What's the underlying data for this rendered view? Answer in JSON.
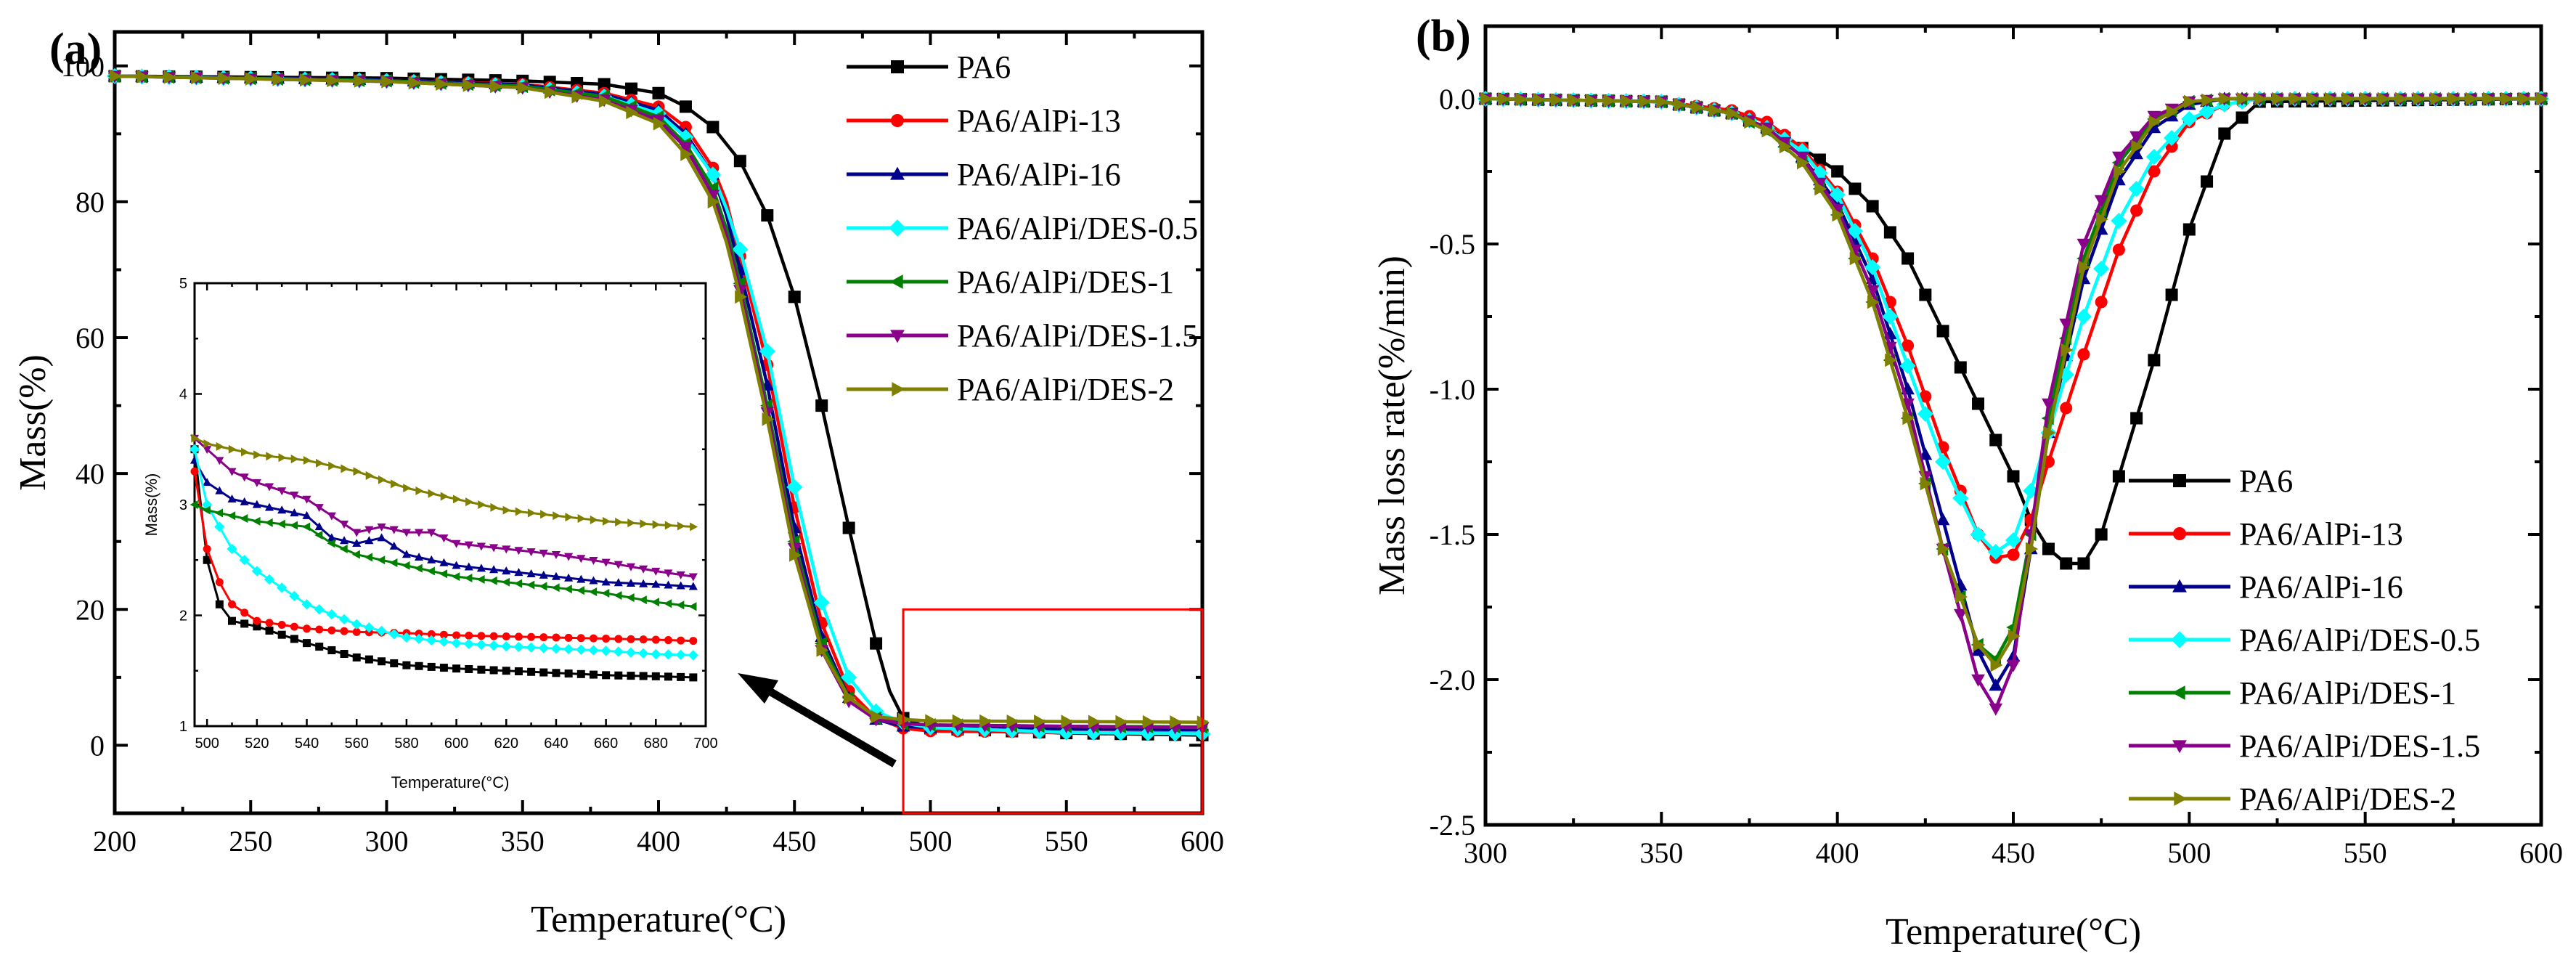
{
  "figure": {
    "series_names": [
      "PA6",
      "PA6/AlPi-13",
      "PA6/AlPi-16",
      "PA6/AlPi/DES-0.5",
      "PA6/AlPi/DES-1",
      "PA6/AlPi/DES-1.5",
      "PA6/AlPi/DES-2"
    ],
    "series_colors": [
      "#000000",
      "#ff0000",
      "#00008b",
      "#00ffff",
      "#008000",
      "#8b008b",
      "#808000"
    ],
    "series_markers": [
      "square",
      "circle",
      "triangle-up",
      "diamond",
      "triangle-left",
      "triangle-down",
      "triangle-right"
    ]
  },
  "chart_data": [
    {
      "panel_label": "(a)",
      "type": "line",
      "title": "",
      "xlabel": "Temperature(°C)",
      "ylabel": "Mass(%)",
      "xlim": [
        200,
        600
      ],
      "ylim": [
        -10,
        105
      ],
      "xticks": [
        200,
        250,
        300,
        350,
        400,
        450,
        500,
        550,
        600
      ],
      "yticks": [
        0,
        20,
        40,
        60,
        80,
        100
      ],
      "legend": "top-right",
      "zoom_box": {
        "x": [
          490,
          600
        ],
        "y": [
          -10,
          20
        ]
      },
      "series": [
        {
          "name": "PA6",
          "x": [
            200,
            300,
            350,
            380,
            400,
            410,
            420,
            430,
            440,
            450,
            460,
            470,
            480,
            485,
            490,
            500,
            550,
            600
          ],
          "y": [
            98.5,
            98.2,
            97.8,
            97.3,
            96,
            94,
            91,
            86,
            78,
            66,
            50,
            32,
            15,
            8,
            4,
            2.5,
            1.8,
            1.5
          ]
        },
        {
          "name": "PA6/AlPi-13",
          "x": [
            200,
            300,
            350,
            380,
            400,
            410,
            420,
            425,
            430,
            440,
            450,
            460,
            470,
            480,
            490,
            500,
            550,
            600
          ],
          "y": [
            98.5,
            97.9,
            97.3,
            96,
            94,
            91,
            85,
            80,
            72,
            56,
            35,
            18,
            8,
            4,
            2.5,
            2.1,
            1.9,
            1.8
          ]
        },
        {
          "name": "PA6/AlPi-16",
          "x": [
            200,
            300,
            350,
            380,
            400,
            410,
            420,
            425,
            430,
            440,
            450,
            460,
            470,
            480,
            490,
            500,
            550,
            600
          ],
          "y": [
            98.5,
            97.9,
            97.2,
            95.8,
            93.5,
            90,
            84,
            78,
            70,
            53,
            32,
            16,
            7,
            3.8,
            2.8,
            2.6,
            2.4,
            2.3
          ]
        },
        {
          "name": "PA6/AlPi/DES-0.5",
          "x": [
            200,
            300,
            350,
            380,
            400,
            410,
            420,
            425,
            430,
            440,
            450,
            460,
            470,
            480,
            490,
            500,
            550,
            600
          ],
          "y": [
            98.5,
            97.8,
            97,
            95.5,
            93,
            89.5,
            84,
            79,
            73,
            58,
            38,
            21,
            10,
            5,
            3.3,
            2.6,
            1.9,
            1.7
          ]
        },
        {
          "name": "PA6/AlPi/DES-1",
          "x": [
            200,
            300,
            350,
            380,
            400,
            410,
            420,
            425,
            430,
            440,
            450,
            460,
            470,
            480,
            490,
            500,
            550,
            600
          ],
          "y": [
            98.5,
            97.8,
            97,
            95.5,
            92.5,
            88.5,
            82,
            76,
            68,
            50,
            30,
            15,
            7,
            4,
            3.2,
            3,
            2.8,
            2.7
          ]
        },
        {
          "name": "PA6/AlPi/DES-1.5",
          "x": [
            200,
            300,
            350,
            380,
            400,
            410,
            420,
            425,
            430,
            440,
            450,
            460,
            470,
            480,
            490,
            500,
            550,
            600
          ],
          "y": [
            98.5,
            97.7,
            96.8,
            95,
            92,
            88,
            81,
            75,
            67,
            49,
            29,
            14,
            6.5,
            3.8,
            3.2,
            3,
            2.8,
            2.6
          ]
        },
        {
          "name": "PA6/AlPi/DES-2",
          "x": [
            200,
            300,
            350,
            380,
            400,
            410,
            420,
            425,
            430,
            440,
            450,
            460,
            470,
            480,
            490,
            500,
            550,
            600
          ],
          "y": [
            98.5,
            97.7,
            96.8,
            94.8,
            91.5,
            87,
            80,
            74,
            66,
            48,
            28,
            14,
            7,
            4.2,
            3.8,
            3.6,
            3.5,
            3.4
          ]
        }
      ],
      "inset": {
        "type": "line",
        "xlabel": "Temperature(°C)",
        "ylabel": "Mass(%)",
        "xlim": [
          495,
          700
        ],
        "ylim": [
          1,
          5
        ],
        "xticks": [
          500,
          520,
          540,
          560,
          580,
          600,
          620,
          640,
          660,
          680,
          700
        ],
        "yticks": [
          1,
          2,
          3,
          4,
          5
        ],
        "series": [
          {
            "name": "PA6",
            "x": [
              495,
              500,
              505,
              510,
              520,
              540,
              560,
              580,
              600,
              620,
              640,
              660,
              680,
              695
            ],
            "y": [
              3.5,
              2.5,
              2.1,
              1.95,
              1.9,
              1.75,
              1.62,
              1.55,
              1.52,
              1.5,
              1.48,
              1.46,
              1.45,
              1.44
            ]
          },
          {
            "name": "PA6/AlPi-13",
            "x": [
              495,
              500,
              505,
              510,
              520,
              540,
              560,
              580,
              600,
              620,
              640,
              660,
              680,
              695
            ],
            "y": [
              3.3,
              2.6,
              2.3,
              2.1,
              1.95,
              1.88,
              1.85,
              1.84,
              1.82,
              1.81,
              1.8,
              1.79,
              1.78,
              1.77
            ]
          },
          {
            "name": "PA6/AlPi-16",
            "x": [
              495,
              500,
              510,
              520,
              530,
              540,
              550,
              560,
              570,
              580,
              590,
              600,
              620,
              640,
              660,
              680,
              695
            ],
            "y": [
              3.4,
              3.2,
              3.05,
              3,
              2.95,
              2.9,
              2.7,
              2.65,
              2.7,
              2.55,
              2.5,
              2.45,
              2.4,
              2.35,
              2.3,
              2.28,
              2.26
            ]
          },
          {
            "name": "PA6/AlPi/DES-0.5",
            "x": [
              495,
              500,
              510,
              520,
              530,
              540,
              560,
              580,
              600,
              620,
              640,
              660,
              680,
              695
            ],
            "y": [
              3.5,
              3,
              2.6,
              2.4,
              2.25,
              2.1,
              1.92,
              1.8,
              1.75,
              1.72,
              1.7,
              1.68,
              1.65,
              1.64
            ]
          },
          {
            "name": "PA6/AlPi/DES-1",
            "x": [
              495,
              500,
              510,
              520,
              540,
              550,
              560,
              580,
              600,
              620,
              640,
              660,
              680,
              695
            ],
            "y": [
              3,
              2.95,
              2.9,
              2.85,
              2.8,
              2.65,
              2.55,
              2.45,
              2.35,
              2.3,
              2.25,
              2.2,
              2.12,
              2.08
            ]
          },
          {
            "name": "PA6/AlPi/DES-1.5",
            "x": [
              495,
              500,
              510,
              520,
              540,
              560,
              570,
              580,
              590,
              600,
              620,
              640,
              660,
              680,
              695
            ],
            "y": [
              3.6,
              3.5,
              3.3,
              3.2,
              3.05,
              2.75,
              2.8,
              2.75,
              2.75,
              2.65,
              2.6,
              2.55,
              2.48,
              2.4,
              2.35
            ]
          },
          {
            "name": "PA6/AlPi/DES-2",
            "x": [
              495,
              500,
              520,
              540,
              560,
              580,
              600,
              620,
              640,
              660,
              680,
              695
            ],
            "y": [
              3.6,
              3.55,
              3.45,
              3.4,
              3.3,
              3.15,
              3.05,
              2.95,
              2.9,
              2.85,
              2.82,
              2.8
            ]
          }
        ]
      }
    },
    {
      "panel_label": "(b)",
      "type": "line",
      "title": "",
      "xlabel": "Temperature(°C)",
      "ylabel": "Mass loss rate(%/min)",
      "xlim": [
        300,
        600
      ],
      "ylim": [
        -2.5,
        0.25
      ],
      "xticks": [
        300,
        350,
        400,
        450,
        500,
        550,
        600
      ],
      "yticks": [
        -2.5,
        -2.0,
        -1.5,
        -1.0,
        -0.5,
        0.0
      ],
      "ytick_labels": [
        "-2.5",
        "-2.0",
        "-1.5",
        "-1.0",
        "-0.5",
        "0.0"
      ],
      "legend": "bottom-right",
      "series": [
        {
          "name": "PA6",
          "x": [
            300,
            350,
            370,
            380,
            390,
            400,
            410,
            420,
            430,
            440,
            450,
            455,
            460,
            465,
            470,
            475,
            480,
            490,
            500,
            510,
            520,
            600
          ],
          "y": [
            0,
            -0.01,
            -0.05,
            -0.1,
            -0.17,
            -0.25,
            -0.37,
            -0.55,
            -0.8,
            -1.05,
            -1.3,
            -1.45,
            -1.55,
            -1.6,
            -1.6,
            -1.5,
            -1.3,
            -0.9,
            -0.45,
            -0.12,
            -0.01,
            0
          ]
        },
        {
          "name": "PA6/AlPi-13",
          "x": [
            300,
            350,
            370,
            380,
            390,
            400,
            410,
            420,
            430,
            440,
            445,
            450,
            455,
            460,
            470,
            480,
            490,
            500,
            510,
            520,
            600
          ],
          "y": [
            0,
            -0.01,
            -0.04,
            -0.08,
            -0.17,
            -0.32,
            -0.55,
            -0.85,
            -1.2,
            -1.5,
            -1.58,
            -1.57,
            -1.45,
            -1.25,
            -0.88,
            -0.52,
            -0.25,
            -0.08,
            -0.02,
            0,
            0
          ]
        },
        {
          "name": "PA6/AlPi-16",
          "x": [
            300,
            350,
            370,
            380,
            390,
            400,
            410,
            420,
            430,
            440,
            445,
            450,
            455,
            460,
            470,
            480,
            490,
            500,
            510,
            600
          ],
          "y": [
            0,
            -0.01,
            -0.05,
            -0.1,
            -0.2,
            -0.36,
            -0.62,
            -1,
            -1.45,
            -1.9,
            -2.02,
            -1.92,
            -1.55,
            -1.15,
            -0.62,
            -0.28,
            -0.1,
            -0.02,
            0,
            0
          ]
        },
        {
          "name": "PA6/AlPi/DES-0.5",
          "x": [
            300,
            350,
            370,
            380,
            390,
            400,
            410,
            420,
            430,
            440,
            445,
            450,
            455,
            460,
            470,
            480,
            490,
            500,
            510,
            520,
            600
          ],
          "y": [
            0,
            -0.01,
            -0.05,
            -0.1,
            -0.18,
            -0.33,
            -0.58,
            -0.92,
            -1.25,
            -1.5,
            -1.56,
            -1.52,
            -1.35,
            -1.15,
            -0.75,
            -0.42,
            -0.2,
            -0.07,
            -0.02,
            0,
            0
          ]
        },
        {
          "name": "PA6/AlPi/DES-1",
          "x": [
            300,
            350,
            370,
            380,
            390,
            400,
            410,
            420,
            430,
            440,
            445,
            450,
            455,
            460,
            470,
            480,
            490,
            500,
            510,
            600
          ],
          "y": [
            0,
            -0.01,
            -0.05,
            -0.11,
            -0.22,
            -0.4,
            -0.7,
            -1.1,
            -1.55,
            -1.88,
            -1.93,
            -1.82,
            -1.5,
            -1.1,
            -0.55,
            -0.22,
            -0.07,
            -0.01,
            0,
            0
          ]
        },
        {
          "name": "PA6/AlPi/DES-1.5",
          "x": [
            300,
            350,
            370,
            380,
            390,
            400,
            410,
            420,
            430,
            440,
            445,
            450,
            455,
            460,
            470,
            480,
            490,
            500,
            510,
            600
          ],
          "y": [
            0,
            -0.01,
            -0.05,
            -0.1,
            -0.2,
            -0.38,
            -0.66,
            -1.05,
            -1.55,
            -2,
            -2.1,
            -1.95,
            -1.5,
            -1.05,
            -0.5,
            -0.2,
            -0.06,
            -0.01,
            0,
            0
          ]
        },
        {
          "name": "PA6/AlPi/DES-2",
          "x": [
            300,
            350,
            370,
            380,
            390,
            400,
            410,
            420,
            430,
            440,
            445,
            450,
            455,
            460,
            470,
            480,
            490,
            500,
            510,
            600
          ],
          "y": [
            0,
            -0.01,
            -0.05,
            -0.11,
            -0.22,
            -0.4,
            -0.7,
            -1.1,
            -1.55,
            -1.88,
            -1.95,
            -1.85,
            -1.55,
            -1.15,
            -0.58,
            -0.25,
            -0.08,
            -0.01,
            0,
            0
          ]
        }
      ]
    }
  ]
}
